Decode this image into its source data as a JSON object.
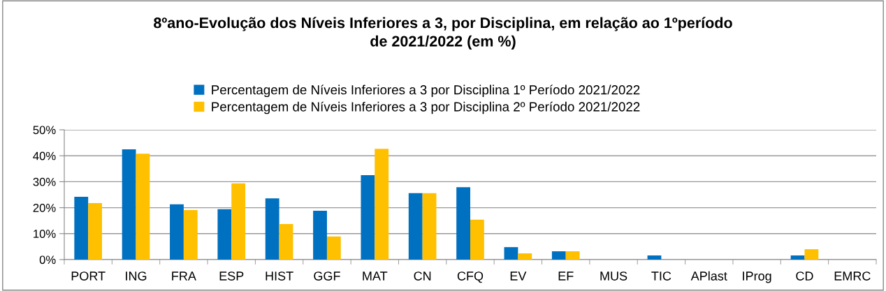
{
  "chart_data": {
    "type": "bar",
    "title": "8ºano-Evolução dos Níveis Inferiores a 3, por Disciplina, em relação ao 1ºperíodo\nde 2021/2022 (em %)",
    "categories": [
      "PORT",
      "ING",
      "FRA",
      "ESP",
      "HIST",
      "GGF",
      "MAT",
      "CN",
      "CFQ",
      "EV",
      "EF",
      "MUS",
      "TIC",
      "APlast",
      "IProg",
      "CD",
      "EMRC"
    ],
    "series": [
      {
        "name": "Percentagem de Níveis Inferiores a 3 por Disciplina 1º Período 2021/2022",
        "color": "#0070c0",
        "values": [
          24.2,
          42.5,
          21.3,
          19.4,
          23.6,
          18.8,
          32.5,
          25.6,
          27.9,
          4.8,
          3.2,
          0,
          1.6,
          0,
          0,
          1.6,
          0
        ]
      },
      {
        "name": "Percentagem de Níveis Inferiores a 3 por Disciplina 2º Período 2021/2022",
        "color": "#ffc000",
        "values": [
          21.8,
          40.8,
          19.1,
          29.4,
          13.7,
          8.9,
          42.7,
          25.6,
          15.4,
          2.4,
          3.2,
          0,
          0,
          0,
          0,
          4.0,
          0
        ]
      }
    ],
    "ylim": [
      0,
      50
    ],
    "yticks": [
      {
        "value": 0,
        "label": "0%"
      },
      {
        "value": 10,
        "label": "10%"
      },
      {
        "value": 20,
        "label": "20%"
      },
      {
        "value": 30,
        "label": "30%"
      },
      {
        "value": 40,
        "label": "40%"
      },
      {
        "value": 50,
        "label": "50%"
      }
    ],
    "grid": "y",
    "legend": "top"
  }
}
